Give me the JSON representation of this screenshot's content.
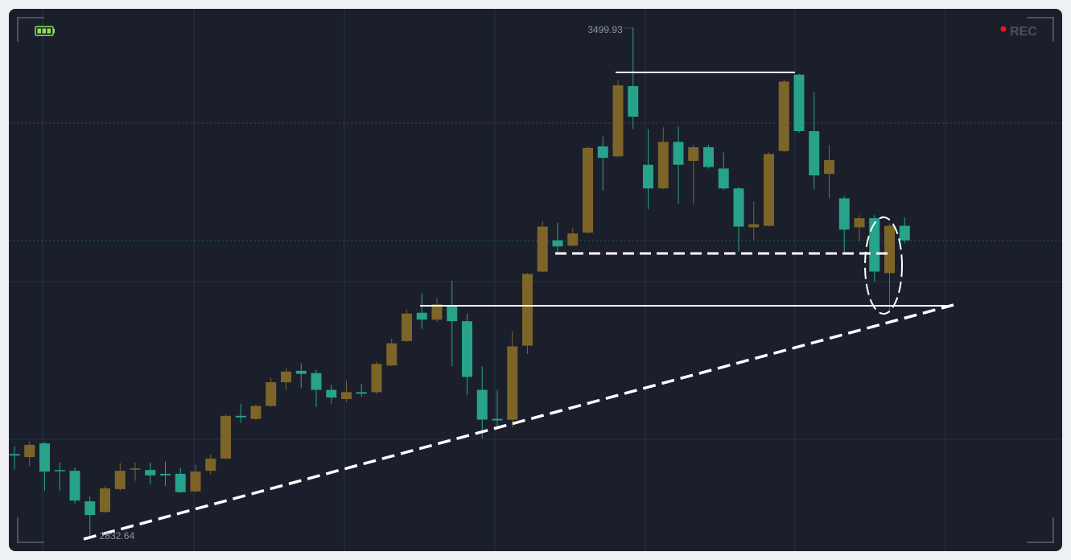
{
  "chart_data": {
    "type": "candlestick",
    "rec_label": "REC",
    "up_color": "#7d6529",
    "down_color": "#26a38a",
    "open": [
      2942,
      2938,
      2956,
      2921,
      2920,
      2880,
      2866,
      2896,
      2922,
      2921,
      2916,
      2916,
      2893,
      2920,
      2936,
      2992,
      2988,
      3005,
      3036,
      3051,
      3048,
      3026,
      3014,
      3023,
      3023,
      3058,
      3090,
      3127,
      3118,
      3136,
      3116,
      3026,
      2988,
      2987,
      3084,
      3181,
      3222,
      3215,
      3232,
      3345,
      3332,
      3424,
      3321,
      3290,
      3351,
      3326,
      3344,
      3316,
      3290,
      3239,
      3241,
      3339,
      3439,
      3365,
      3309,
      3277,
      3239,
      3251,
      3179,
      3241
    ],
    "high": [
      2952,
      2959,
      2958,
      2931,
      2924,
      2886,
      2900,
      2930,
      2931,
      2931,
      2932,
      2924,
      2928,
      2941,
      2994,
      3008,
      3007,
      3042,
      3054,
      3061,
      3052,
      3033,
      3038,
      3034,
      3063,
      3093,
      3131,
      3153,
      3147,
      3169,
      3126,
      3057,
      3026,
      3103,
      3179,
      3247,
      3245,
      3238,
      3345,
      3358,
      3432,
      3499.93,
      3368,
      3370,
      3371,
      3347,
      3347,
      3337,
      3292,
      3273,
      3337,
      3433,
      3440,
      3416,
      3347,
      3280,
      3255,
      3255,
      3244,
      3252
    ],
    "low": [
      2922,
      2926,
      2894,
      2894,
      2877,
      2832.64,
      2865,
      2894,
      2907,
      2902,
      2900,
      2891,
      2892,
      2915,
      2935,
      2983,
      2986,
      3004,
      3026,
      3028,
      3004,
      3008,
      3010,
      3017,
      3021,
      3057,
      3089,
      3106,
      3115,
      3057,
      3019,
      2963,
      2978,
      2977,
      3073,
      3180,
      3203,
      3214,
      3231,
      3287,
      3331,
      3368,
      3263,
      3289,
      3270,
      3269,
      3316,
      3288,
      3207,
      3223,
      3240,
      3337,
      3363,
      3289,
      3277,
      3207,
      3221,
      3168,
      3126,
      3218
    ],
    "close": [
      2940,
      2954,
      2919,
      2920,
      2881,
      2862,
      2897,
      2920,
      2923,
      2914,
      2914,
      2892,
      2919,
      2936,
      2992,
      2990,
      3005,
      3036,
      3050,
      3047,
      3026,
      3016,
      3023,
      3021,
      3060,
      3087,
      3126,
      3118,
      3138,
      3116,
      3043,
      2987,
      2986,
      3083,
      3178,
      3240,
      3214,
      3231,
      3343,
      3330,
      3425,
      3384,
      3290,
      3351,
      3321,
      3344,
      3318,
      3290,
      3240,
      3243,
      3335,
      3430,
      3365,
      3307,
      3327,
      3236,
      3251,
      3181,
      3241,
      3222
    ]
  }
}
